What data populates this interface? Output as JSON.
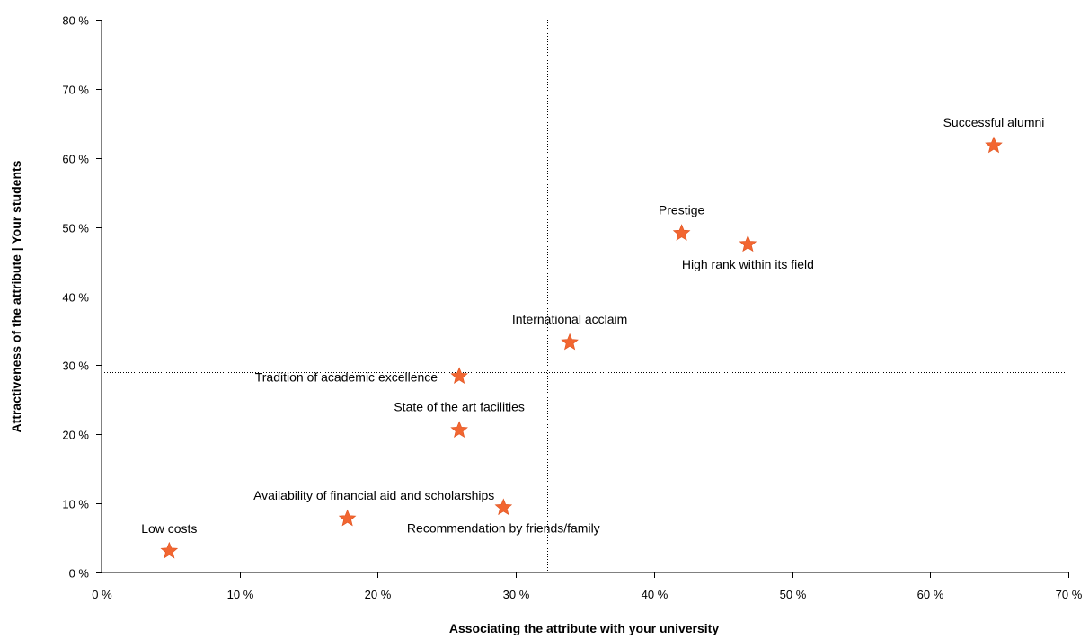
{
  "chart_data": {
    "type": "scatter",
    "title": "",
    "xlabel": "Associating the attribute with your university",
    "ylabel": "Attractiveness of the attribute | Your students",
    "xlim": [
      0,
      70
    ],
    "ylim": [
      0,
      80
    ],
    "x_ticks": [
      "0 %",
      "10 %",
      "20 %",
      "30 %",
      "40 %",
      "50 %",
      "60 %",
      "70 %"
    ],
    "y_ticks": [
      "0 %",
      "10 %",
      "20 %",
      "30 %",
      "40 %",
      "50 %",
      "60 %",
      "70 %",
      "80 %"
    ],
    "reference_lines": {
      "x": 32.3,
      "y": 29.0
    },
    "marker": "star",
    "marker_color": "#f26631",
    "grid": false,
    "points": [
      {
        "label": "Low costs",
        "x": 4.9,
        "y": 3.1
      },
      {
        "label": "Availability of financial aid and scholarships",
        "x": 17.8,
        "y": 7.8
      },
      {
        "label": "Recommendation by friends/family",
        "x": 29.1,
        "y": 9.4
      },
      {
        "label": "State of the art facilities",
        "x": 25.9,
        "y": 20.6
      },
      {
        "label": "Tradition of academic excellence",
        "x": 25.9,
        "y": 28.4
      },
      {
        "label": "International acclaim",
        "x": 33.9,
        "y": 33.3
      },
      {
        "label": "Prestige",
        "x": 42.0,
        "y": 49.1
      },
      {
        "label": "High rank within its field",
        "x": 46.8,
        "y": 47.5
      },
      {
        "label": "Successful alumni",
        "x": 64.6,
        "y": 61.8
      }
    ]
  }
}
